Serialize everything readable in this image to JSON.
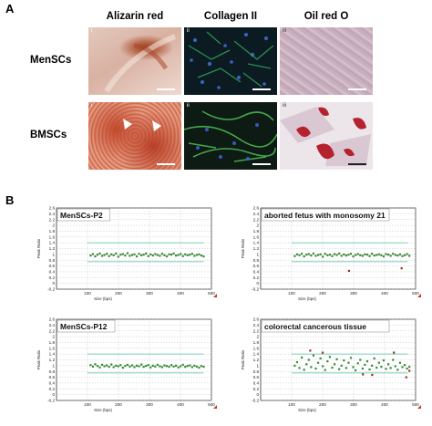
{
  "panel_a": {
    "letter": "A",
    "columns": [
      "Alizarin red",
      "Collagen II",
      "Oil red O"
    ],
    "rows": [
      {
        "label": "MenSCs",
        "sublabels": [
          "i",
          "ii",
          "iii"
        ]
      },
      {
        "label": "BMSCs",
        "sublabels": [
          "i",
          "ii",
          "iii"
        ]
      }
    ]
  },
  "panel_b": {
    "letter": "B",
    "colors": {
      "points": "#3a8a3a",
      "outlier": "#a02828",
      "threshold": "#8ad3c0",
      "grid": "#b8b8b8"
    },
    "chart_data": [
      {
        "type": "scatter",
        "title": "MenSCs-P2",
        "ylabel": "Peak Ratio",
        "xlabel": "Size (bps)",
        "ylim": [
          -0.2,
          2.6
        ],
        "xlim": [
          0,
          500
        ],
        "yticks": [
          "2.6",
          "2.4",
          "2.2",
          "2",
          "1.8",
          "1.6",
          "1.4",
          "1.2",
          "1",
          "0.8",
          "0.6",
          "0.4",
          "0.2",
          "0",
          "-0.2"
        ],
        "xticks": [
          "100",
          "200",
          "300",
          "400",
          "500"
        ],
        "thresholds": [
          1.4,
          0.75
        ],
        "x_start": 110,
        "x_end": 475,
        "series": [
          {
            "values": [
              0.96,
              1.01,
              0.93,
              0.99,
              1.03,
              0.95,
              0.98,
              1.02,
              0.94,
              1.0,
              0.97,
              1.03,
              0.92,
              0.99,
              1.01,
              0.96,
              1.04,
              0.95,
              0.98,
              1.0,
              0.93,
              1.02,
              0.97,
              0.99,
              1.03,
              0.94,
              1.0,
              0.96,
              1.01,
              0.98,
              0.95,
              1.02,
              0.97,
              0.93,
              1.0,
              0.99,
              1.03,
              0.96,
              0.98,
              1.01,
              0.94,
              1.0,
              0.97,
              0.99,
              1.02,
              0.95,
              0.98,
              1.0,
              0.96,
              0.93
            ]
          }
        ]
      },
      {
        "type": "scatter",
        "title": "aborted fetus with monosomy 21",
        "ylabel": "Peak Ratio",
        "xlabel": "Size (bps)",
        "ylim": [
          -0.2,
          2.6
        ],
        "xlim": [
          0,
          500
        ],
        "yticks": [
          "2.6",
          "2.4",
          "2.2",
          "2",
          "1.8",
          "1.6",
          "1.4",
          "1.2",
          "1",
          "0.8",
          "0.6",
          "0.4",
          "0.2",
          "0",
          "-0.2"
        ],
        "xticks": [
          "100",
          "200",
          "300",
          "400",
          "500"
        ],
        "thresholds": [
          1.4,
          0.75
        ],
        "x_start": 110,
        "x_end": 480,
        "series": [
          {
            "values": [
              0.94,
              1.0,
              0.97,
              1.02,
              0.93,
              0.99,
              1.01,
              0.96,
              1.03,
              0.95,
              0.98,
              1.0,
              0.92,
              1.02,
              0.97,
              0.99,
              0.94,
              1.01,
              0.98,
              1.03,
              0.95,
              1.0,
              0.96,
              0.99,
              1.02,
              0.93,
              0.98,
              1.01,
              0.97,
              0.95,
              1.0,
              0.99,
              0.94,
              1.02,
              0.96,
              0.98,
              1.0,
              0.97,
              0.93,
              1.01,
              0.99,
              0.95,
              1.02,
              0.98,
              0.96,
              1.0,
              0.94,
              0.97,
              1.01,
              0.95
            ]
          },
          {
            "name": "",
            "outliers": [
              [
                285,
                0.43
              ],
              [
                455,
                0.52
              ]
            ]
          }
        ]
      },
      {
        "type": "scatter",
        "title": "MenSCs-P12",
        "ylabel": "Peak Ratio",
        "xlabel": "Size (bps)",
        "ylim": [
          -0.2,
          2.6
        ],
        "xlim": [
          0,
          500
        ],
        "yticks": [
          "2.6",
          "2.4",
          "2.2",
          "2",
          "1.8",
          "1.6",
          "1.4",
          "1.2",
          "1",
          "0.8",
          "0.6",
          "0.4",
          "0.2",
          "0",
          "-0.2"
        ],
        "xticks": [
          "100",
          "200",
          "300",
          "400",
          "500"
        ],
        "thresholds": [
          1.4,
          0.75
        ],
        "x_start": 110,
        "x_end": 475,
        "series": [
          {
            "values": [
              1.02,
              0.97,
              1.05,
              0.99,
              0.94,
              1.03,
              0.98,
              1.01,
              0.96,
              1.04,
              0.95,
              1.0,
              0.98,
              1.02,
              0.93,
              0.99,
              1.03,
              0.97,
              1.01,
              0.95,
              1.0,
              0.98,
              1.04,
              0.96,
              0.99,
              1.02,
              0.94,
              1.0,
              0.97,
              1.03,
              0.98,
              0.95,
              1.01,
              0.99,
              0.96,
              1.02,
              0.97,
              1.0,
              0.94,
              0.98,
              1.03,
              0.96,
              0.99,
              1.01,
              0.95,
              1.0,
              0.97,
              0.93,
              0.99,
              0.96
            ]
          }
        ]
      },
      {
        "type": "scatter",
        "title": "colorectal cancerous tissue",
        "ylabel": "Peak Ratio",
        "xlabel": "Size (bps)",
        "ylim": [
          -0.2,
          2.6
        ],
        "xlim": [
          0,
          500
        ],
        "yticks": [
          "2.6",
          "2.4",
          "2.2",
          "2",
          "1.8",
          "1.6",
          "1.4",
          "1.2",
          "1",
          "0.8",
          "0.6",
          "0.4",
          "0.2",
          "0",
          "-0.2"
        ],
        "xticks": [
          "100",
          "200",
          "300",
          "400",
          "500"
        ],
        "thresholds": [
          1.4,
          0.75
        ],
        "x_start": 110,
        "x_end": 480,
        "series": [
          {
            "values": [
              1.0,
              1.12,
              0.92,
              1.28,
              0.86,
              1.05,
              1.2,
              0.95,
              1.35,
              0.9,
              1.1,
              1.25,
              0.98,
              0.85,
              1.15,
              1.3,
              0.93,
              1.05,
              1.22,
              0.88,
              1.0,
              1.18,
              0.92,
              1.1,
              1.27,
              0.95,
              0.84,
              1.08,
              1.2,
              0.9,
              1.03,
              1.15,
              0.87,
              1.0,
              1.25,
              0.93,
              1.1,
              0.96,
              1.18,
              0.89,
              1.05,
              0.92,
              1.2,
              0.98,
              0.86,
              1.1,
              0.95,
              1.02,
              0.9,
              0.96
            ]
          },
          {
            "name": "",
            "outliers": [
              [
                160,
                1.52
              ],
              [
                200,
                1.45
              ],
              [
                330,
                0.7
              ],
              [
                360,
                0.68
              ],
              [
                430,
                1.45
              ],
              [
                470,
                0.6
              ],
              [
                480,
                0.82
              ]
            ]
          }
        ]
      }
    ]
  }
}
